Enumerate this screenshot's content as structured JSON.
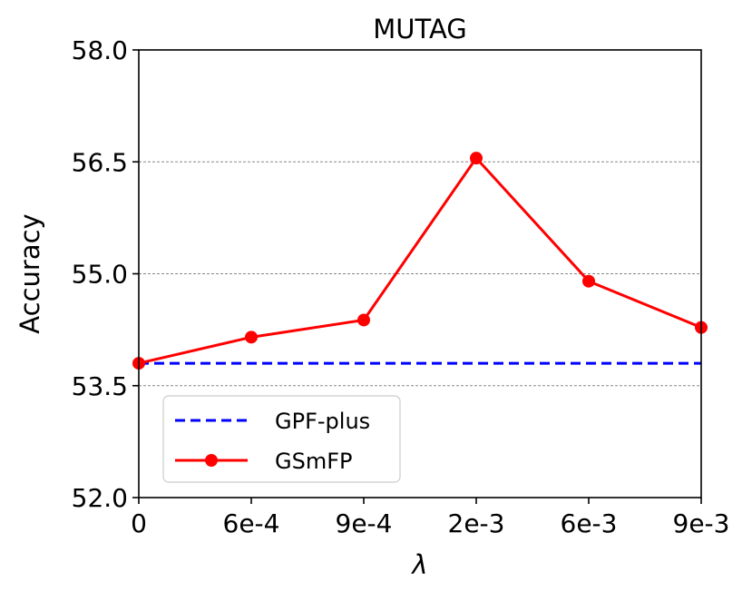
{
  "chart_data": {
    "type": "line",
    "title": "MUTAG",
    "xlabel": "λ",
    "ylabel": "Accuracy",
    "categories": [
      "0",
      "6e-4",
      "9e-4",
      "2e-3",
      "6e-3",
      "9e-3"
    ],
    "yticks": [
      "52.0",
      "53.5",
      "55.0",
      "56.5",
      "58.0"
    ],
    "ylim": [
      52.0,
      58.0
    ],
    "grid": "horizontal dashed at 53.5, 55.0, 56.5",
    "legend_position": "lower-left",
    "series": [
      {
        "name": "GPF-plus",
        "style": "dashed",
        "color": "#0000ff",
        "values": [
          53.8,
          53.8,
          53.8,
          53.8,
          53.8,
          53.8
        ]
      },
      {
        "name": "GSmFP",
        "style": "solid-with-markers",
        "color": "#ff0000",
        "values": [
          53.8,
          54.15,
          54.38,
          56.55,
          54.9,
          54.28
        ]
      }
    ]
  }
}
